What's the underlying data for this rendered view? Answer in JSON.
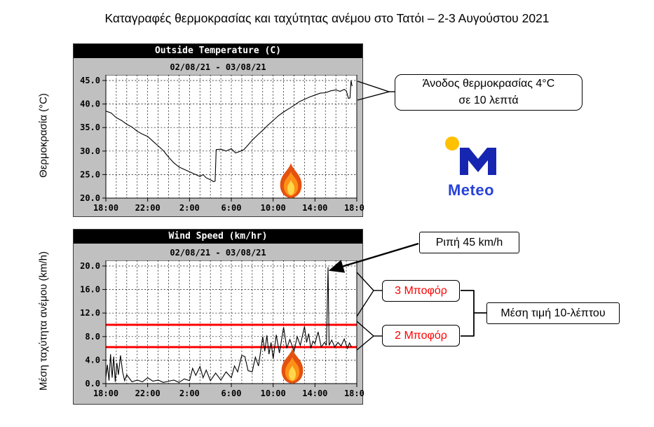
{
  "page": {
    "title": "Καταγραφές θερμοκρασίας και ταχύτητας ανέμου στο Τατόι – 2-3 Αυγούστου 2021"
  },
  "annotations": {
    "temp_rise_line1": "Άνοδος θερμοκρασίας 4°C",
    "temp_rise_line2": "σε 10 λεπτά",
    "gust": "Ριπή 45 km/h",
    "beaufort3": "3 Μποφόρ",
    "beaufort2": "2 Μποφόρ",
    "mean10": "Μέση τιμή 10-λέπτου"
  },
  "logo": {
    "text": "Meteo"
  },
  "colors": {
    "threshold_line": "#ff0000",
    "beaufort_text": "#ff0000",
    "logo_blue": "#1726b0",
    "logo_yellow": "#ffc000",
    "panel_bg": "#c0c0c0",
    "titlebar_bg": "#000000",
    "titlebar_text": "#ffffff"
  },
  "chart_data": [
    {
      "type": "line",
      "title": "Outside Temperature (C)",
      "subtitle": "02/08/21 - 03/08/21",
      "ylabel": "Θερμοκρασία (°C)",
      "ylim": [
        20,
        45
      ],
      "yticks": [
        20,
        25,
        30,
        35,
        40,
        45
      ],
      "xlim_hours": [
        0,
        24
      ],
      "x_grid_step_hours": 1,
      "xticks": [
        {
          "h": 0,
          "label": "18:00"
        },
        {
          "h": 4,
          "label": "22:00"
        },
        {
          "h": 8,
          "label": "2:00"
        },
        {
          "h": 12,
          "label": "6:00"
        },
        {
          "h": 16,
          "label": "10:00"
        },
        {
          "h": 20,
          "label": "14:00"
        },
        {
          "h": 24,
          "label": "18:00"
        }
      ],
      "x": [
        0,
        0.5,
        1,
        1.5,
        2,
        2.5,
        3,
        3.5,
        4,
        4.5,
        5,
        5.5,
        6,
        6.5,
        7,
        7.5,
        8,
        8.5,
        9,
        9.3,
        9.6,
        10,
        10.3,
        10.45,
        10.55,
        11,
        11.5,
        12,
        12.4,
        12.8,
        13.2,
        13.6,
        14,
        14.5,
        15,
        15.5,
        16,
        16.5,
        17,
        17.5,
        18,
        18.5,
        19,
        19.5,
        20,
        20.5,
        21,
        21.5,
        22,
        22.4,
        22.8,
        23.0,
        23.2,
        23.35,
        23.45,
        23.55
      ],
      "y": [
        38.5,
        38.1,
        37.1,
        36.5,
        35.7,
        35.1,
        34.2,
        33.6,
        33.1,
        32.1,
        31.1,
        30.1,
        28.7,
        27.5,
        26.6,
        26.1,
        25.6,
        25.1,
        24.6,
        25.0,
        24.3,
        23.9,
        23.5,
        23.6,
        30.3,
        30.4,
        30.0,
        30.5,
        29.6,
        29.9,
        30.3,
        31.3,
        32.3,
        33.4,
        34.4,
        35.5,
        36.5,
        37.5,
        38.3,
        39.0,
        39.7,
        40.5,
        41.0,
        41.5,
        41.9,
        42.3,
        42.4,
        42.8,
        43.0,
        42.7,
        43.1,
        42.8,
        41.2,
        41.3,
        45.0,
        43.8
      ]
    },
    {
      "type": "line",
      "title": "Wind Speed (km/hr)",
      "subtitle": "02/08/21 - 03/08/21",
      "ylabel": "Μέση ταχύτητα ανέμου (km/h)",
      "ylim": [
        0,
        20
      ],
      "yticks": [
        0,
        4,
        8,
        12,
        16,
        20
      ],
      "xlim_hours": [
        0,
        24
      ],
      "x_grid_step_hours": 1,
      "xticks": [
        {
          "h": 0,
          "label": "18:00"
        },
        {
          "h": 4,
          "label": "22:00"
        },
        {
          "h": 8,
          "label": "2:00"
        },
        {
          "h": 12,
          "label": "6:00"
        },
        {
          "h": 16,
          "label": "10:00"
        },
        {
          "h": 20,
          "label": "14:00"
        },
        {
          "h": 24,
          "label": "18:00"
        }
      ],
      "threshold_lines": [
        {
          "y": 10.0,
          "color": "#ff0000"
        },
        {
          "y": 6.2,
          "color": "#ff0000"
        }
      ],
      "x": [
        0,
        0.15,
        0.3,
        0.45,
        0.6,
        0.75,
        0.9,
        1.05,
        1.2,
        1.4,
        1.6,
        1.8,
        2,
        2.5,
        3,
        3.5,
        4,
        4.5,
        5,
        5.5,
        6,
        6.5,
        7,
        7.5,
        8,
        8.3,
        8.6,
        9,
        9.3,
        9.6,
        10,
        10.5,
        11,
        11.5,
        12,
        12.3,
        12.6,
        13,
        13.3,
        13.6,
        14,
        14.3,
        14.6,
        15,
        15.2,
        15.4,
        15.6,
        15.8,
        16,
        16.3,
        16.6,
        17,
        17.3,
        17.6,
        18,
        18.3,
        18.6,
        19,
        19.2,
        19.4,
        19.6,
        19.8,
        20,
        20.3,
        20.6,
        20.9,
        21.1,
        21.25,
        21.35,
        21.6,
        21.9,
        22.2,
        22.5,
        22.8,
        23.1,
        23.3,
        23.5
      ],
      "y": [
        1.0,
        3.2,
        0.5,
        5.0,
        1.0,
        4.6,
        0.3,
        3.5,
        1.5,
        4.8,
        2.0,
        0.5,
        1.5,
        0.3,
        0.6,
        0.3,
        1.0,
        0.4,
        0.6,
        0.2,
        0.4,
        0.6,
        0.2,
        0.8,
        0.5,
        2.6,
        1.4,
        2.9,
        1.0,
        2.3,
        0.5,
        1.8,
        0.6,
        2.0,
        1.0,
        3.0,
        2.0,
        4.8,
        4.6,
        2.2,
        2.0,
        4.5,
        3.0,
        8.0,
        5.5,
        8.2,
        5.0,
        7.0,
        4.2,
        8.3,
        5.2,
        9.6,
        6.0,
        7.5,
        5.5,
        8.0,
        6.5,
        9.7,
        7.0,
        8.5,
        6.0,
        7.2,
        6.8,
        8.8,
        6.2,
        7.0,
        6.6,
        19.8,
        6.5,
        7.4,
        6.2,
        7.0,
        6.4,
        7.6,
        6.0,
        6.9,
        6.2
      ]
    }
  ]
}
